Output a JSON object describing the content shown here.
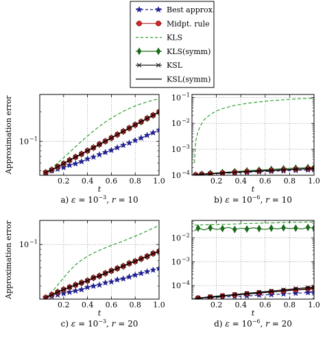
{
  "chart_data": {
    "type": "line",
    "ylabel": "Approximation error",
    "legend_position": "top-center",
    "legend": [
      "Best approx.",
      "Midpt. rule",
      "KLS",
      "KLS(symm)",
      "KSL",
      "KSL(symm)"
    ],
    "series_styles": {
      "Best approx.": {
        "color": "#1f1f8f",
        "line": "dashed",
        "marker": "star"
      },
      "Midpt. rule": {
        "color": "#b22222",
        "line": "solid",
        "marker": "circle"
      },
      "KLS": {
        "color": "#2ca02c",
        "line": "dashed",
        "marker": "none"
      },
      "KLS(symm)": {
        "color": "#1a6b1a",
        "line": "solid",
        "marker": "diamond"
      },
      "KSL": {
        "color": "#000000",
        "line": "solid",
        "marker": "x"
      },
      "KSL(symm)": {
        "color": "#000000",
        "line": "solid",
        "marker": "none"
      }
    },
    "panels": [
      {
        "id": "a",
        "caption": "a) ε = 10⁻³, r = 10",
        "caption_parts": [
          "a) ",
          "ε",
          " = 10",
          "−3",
          ", ",
          "r",
          " = 10"
        ],
        "xlabel": "t",
        "xlim": [
          0,
          1
        ],
        "ylim": [
          0.045,
          0.3
        ],
        "yscale": "log",
        "x_ticks": [
          "0.2",
          "0.4",
          "0.6",
          "0.8",
          "1.0"
        ],
        "y_ticks": [
          {
            "value": 0.1,
            "mantissa": "10",
            "exp": "−1"
          }
        ],
        "grid": true,
        "x": [
          0.05,
          0.1,
          0.15,
          0.2,
          0.25,
          0.3,
          0.35,
          0.4,
          0.45,
          0.5,
          0.55,
          0.6,
          0.65,
          0.7,
          0.75,
          0.8,
          0.85,
          0.9,
          0.95,
          1.0
        ],
        "series": [
          {
            "name": "Best approx.",
            "values": [
              0.048,
              0.05,
              0.052,
              0.054,
              0.057,
              0.059,
              0.062,
              0.066,
              0.069,
              0.073,
              0.077,
              0.081,
              0.086,
              0.091,
              0.096,
              0.102,
              0.108,
              0.115,
              0.122,
              0.13
            ]
          },
          {
            "name": "Midpt. rule",
            "values": [
              0.048,
              0.051,
              0.055,
              0.059,
              0.064,
              0.069,
              0.074,
              0.08,
              0.086,
              0.093,
              0.1,
              0.108,
              0.117,
              0.126,
              0.136,
              0.147,
              0.158,
              0.171,
              0.184,
              0.199
            ]
          },
          {
            "name": "KLS",
            "values": [
              0.048,
              0.053,
              0.06,
              0.068,
              0.077,
              0.088,
              0.1,
              0.113,
              0.127,
              0.142,
              0.157,
              0.172,
              0.187,
              0.202,
              0.216,
              0.229,
              0.241,
              0.252,
              0.262,
              0.272
            ]
          },
          {
            "name": "KLS(symm)",
            "values": [
              0.048,
              0.051,
              0.055,
              0.059,
              0.064,
              0.069,
              0.074,
              0.08,
              0.086,
              0.093,
              0.1,
              0.108,
              0.117,
              0.126,
              0.136,
              0.147,
              0.158,
              0.171,
              0.184,
              0.199
            ]
          },
          {
            "name": "KSL",
            "values": [
              0.048,
              0.051,
              0.055,
              0.059,
              0.064,
              0.069,
              0.074,
              0.08,
              0.086,
              0.093,
              0.1,
              0.108,
              0.117,
              0.126,
              0.136,
              0.147,
              0.158,
              0.171,
              0.184,
              0.199
            ]
          },
          {
            "name": "KSL(symm)",
            "values": [
              0.048,
              0.051,
              0.055,
              0.059,
              0.064,
              0.069,
              0.074,
              0.08,
              0.086,
              0.093,
              0.1,
              0.108,
              0.117,
              0.126,
              0.136,
              0.147,
              0.158,
              0.171,
              0.184,
              0.199
            ]
          }
        ]
      },
      {
        "id": "b",
        "caption": "b) ε = 10⁻⁶, r = 10",
        "caption_parts": [
          "b) ",
          "ε",
          " = 10",
          "−6",
          ", ",
          "r",
          " = 10"
        ],
        "xlabel": "t",
        "xlim": [
          0,
          1
        ],
        "ylim": [
          0.0001,
          0.13
        ],
        "yscale": "log",
        "x_ticks": [
          "0.2",
          "0.4",
          "0.6",
          "0.8",
          "1.0"
        ],
        "y_ticks": [
          {
            "value": 0.1,
            "mantissa": "10",
            "exp": "−1"
          },
          {
            "value": 0.01,
            "mantissa": "10",
            "exp": "−2"
          },
          {
            "value": 0.001,
            "mantissa": "10",
            "exp": "−3"
          },
          {
            "value": 0.0001,
            "mantissa": "10",
            "exp": "−4"
          }
        ],
        "grid": true,
        "x": [
          0.02,
          0.03,
          0.05,
          0.08,
          0.1,
          0.15,
          0.2,
          0.25,
          0.3,
          0.35,
          0.4,
          0.45,
          0.5,
          0.55,
          0.6,
          0.65,
          0.7,
          0.75,
          0.8,
          0.85,
          0.9,
          0.95,
          1.0
        ],
        "series": [
          {
            "name": "Best approx.",
            "values": [
              0.0001,
              0.000101,
              0.000103,
              0.000106,
              0.000108,
              0.000112,
              0.000115,
              0.000118,
              0.000121,
              0.000124,
              0.000127,
              0.00013,
              0.000133,
              0.000136,
              0.000139,
              0.000142,
              0.000145,
              0.000148,
              0.000151,
              0.000154,
              0.000157,
              0.00016,
              0.000163
            ]
          },
          {
            "name": "Midpt. rule",
            "values": [
              0.0001,
              0.000102,
              0.000105,
              0.000108,
              0.00011,
              0.000114,
              0.000118,
              0.000122,
              0.000126,
              0.00013,
              0.000134,
              0.000138,
              0.000142,
              0.000146,
              0.00015,
              0.000154,
              0.000158,
              0.000162,
              0.000166,
              0.00017,
              0.000174,
              0.000178,
              0.000182
            ]
          },
          {
            "name": "KLS",
            "values": [
              0.0003,
              0.002,
              0.005,
              0.01,
              0.014,
              0.022,
              0.03,
              0.037,
              0.043,
              0.049,
              0.054,
              0.059,
              0.063,
              0.067,
              0.071,
              0.075,
              0.078,
              0.081,
              0.084,
              0.087,
              0.089,
              0.091,
              0.093
            ]
          },
          {
            "name": "KLS(symm)",
            "values": [
              0.0001,
              0.000102,
              0.000106,
              0.00011,
              0.000113,
              0.000118,
              0.000123,
              0.000128,
              0.000133,
              0.000138,
              0.000143,
              0.000148,
              0.000153,
              0.000158,
              0.000163,
              0.000168,
              0.000173,
              0.000178,
              0.000183,
              0.000188,
              0.000193,
              0.000198,
              0.000203
            ]
          },
          {
            "name": "KSL",
            "values": [
              0.0001,
              0.000102,
              0.000105,
              0.000108,
              0.00011,
              0.000114,
              0.000118,
              0.000122,
              0.000126,
              0.00013,
              0.000134,
              0.000138,
              0.000142,
              0.000146,
              0.00015,
              0.000154,
              0.000158,
              0.000162,
              0.000166,
              0.00017,
              0.000174,
              0.000178,
              0.000182
            ]
          },
          {
            "name": "KSL(symm)",
            "values": [
              0.0001,
              0.000102,
              0.000105,
              0.000108,
              0.00011,
              0.000114,
              0.000118,
              0.000122,
              0.000126,
              0.00013,
              0.000134,
              0.000138,
              0.000142,
              0.000146,
              0.00015,
              0.000154,
              0.000158,
              0.000162,
              0.000166,
              0.00017,
              0.000174,
              0.000178,
              0.000182
            ]
          }
        ]
      },
      {
        "id": "c",
        "caption": "c) ε = 10⁻³, r = 20",
        "caption_parts": [
          "c) ",
          "ε",
          " = 10",
          "−3",
          ", ",
          "r",
          " = 20"
        ],
        "xlabel": "t",
        "xlim": [
          0,
          1
        ],
        "ylim": [
          0.03,
          0.17
        ],
        "yscale": "log",
        "x_ticks": [
          "0.2",
          "0.4",
          "0.6",
          "0.8",
          "1.0"
        ],
        "y_ticks": [
          {
            "value": 0.1,
            "mantissa": "10",
            "exp": "−1"
          }
        ],
        "grid": true,
        "x": [
          0.05,
          0.1,
          0.15,
          0.2,
          0.25,
          0.3,
          0.35,
          0.4,
          0.45,
          0.5,
          0.55,
          0.6,
          0.65,
          0.7,
          0.75,
          0.8,
          0.85,
          0.9,
          0.95,
          1.0
        ],
        "series": [
          {
            "name": "Best approx.",
            "values": [
              0.031,
              0.032,
              0.033,
              0.034,
              0.035,
              0.036,
              0.037,
              0.039,
              0.04,
              0.041,
              0.043,
              0.044,
              0.046,
              0.047,
              0.049,
              0.051,
              0.053,
              0.055,
              0.057,
              0.059
            ]
          },
          {
            "name": "Midpt. rule",
            "values": [
              0.031,
              0.033,
              0.035,
              0.037,
              0.039,
              0.041,
              0.043,
              0.045,
              0.048,
              0.05,
              0.053,
              0.056,
              0.059,
              0.062,
              0.066,
              0.069,
              0.073,
              0.077,
              0.082,
              0.086
            ]
          },
          {
            "name": "KLS",
            "values": [
              0.031,
              0.035,
              0.041,
              0.048,
              0.056,
              0.064,
              0.071,
              0.077,
              0.083,
              0.088,
              0.093,
              0.098,
              0.103,
              0.108,
              0.114,
              0.12,
              0.127,
              0.135,
              0.143,
              0.152
            ]
          },
          {
            "name": "KLS(symm)",
            "values": [
              0.031,
              0.033,
              0.035,
              0.037,
              0.039,
              0.041,
              0.043,
              0.045,
              0.048,
              0.05,
              0.053,
              0.056,
              0.059,
              0.062,
              0.066,
              0.069,
              0.073,
              0.077,
              0.082,
              0.086
            ]
          },
          {
            "name": "KSL",
            "values": [
              0.031,
              0.033,
              0.035,
              0.037,
              0.039,
              0.041,
              0.043,
              0.045,
              0.048,
              0.05,
              0.053,
              0.056,
              0.059,
              0.062,
              0.066,
              0.069,
              0.073,
              0.077,
              0.082,
              0.086
            ]
          },
          {
            "name": "KSL(symm)",
            "values": [
              0.031,
              0.033,
              0.035,
              0.037,
              0.039,
              0.041,
              0.043,
              0.045,
              0.048,
              0.05,
              0.053,
              0.056,
              0.059,
              0.062,
              0.066,
              0.069,
              0.073,
              0.077,
              0.082,
              0.086
            ]
          }
        ]
      },
      {
        "id": "d",
        "caption": "d) ε = 10⁻⁶, r = 20",
        "caption_parts": [
          "d) ",
          "ε",
          " = 10",
          "−6",
          ", ",
          "r",
          " = 20"
        ],
        "xlabel": "t",
        "xlim": [
          0,
          1
        ],
        "ylim": [
          2.7e-05,
          0.055
        ],
        "yscale": "log",
        "x_ticks": [
          "0.2",
          "0.4",
          "0.6",
          "0.8",
          "1.0"
        ],
        "y_ticks": [
          {
            "value": 0.01,
            "mantissa": "10",
            "exp": "−2"
          },
          {
            "value": 0.001,
            "mantissa": "10",
            "exp": "−3"
          },
          {
            "value": 0.0001,
            "mantissa": "10",
            "exp": "−4"
          }
        ],
        "grid": true,
        "x": [
          0.02,
          0.05,
          0.1,
          0.15,
          0.2,
          0.25,
          0.3,
          0.35,
          0.4,
          0.45,
          0.5,
          0.55,
          0.6,
          0.65,
          0.7,
          0.75,
          0.8,
          0.85,
          0.9,
          0.95,
          1.0
        ],
        "series": [
          {
            "name": "Best approx.",
            "values": [
              2.8e-05,
              2.9e-05,
              3e-05,
              3.1e-05,
              3.2e-05,
              3.3e-05,
              3.4e-05,
              3.5e-05,
              3.6e-05,
              3.7e-05,
              3.8e-05,
              4e-05,
              4.1e-05,
              4.2e-05,
              4.3e-05,
              4.5e-05,
              4.6e-05,
              4.8e-05,
              4.9e-05,
              5.1e-05,
              5.2e-05
            ]
          },
          {
            "name": "Midpt. rule",
            "values": [
              2.8e-05,
              3e-05,
              3.1e-05,
              3.3e-05,
              3.5e-05,
              3.7e-05,
              3.9e-05,
              4.1e-05,
              4.3e-05,
              4.5e-05,
              4.7e-05,
              5e-05,
              5.2e-05,
              5.5e-05,
              5.8e-05,
              6.1e-05,
              6.4e-05,
              6.7e-05,
              7e-05,
              7.4e-05,
              7.8e-05
            ]
          },
          {
            "name": "KLS",
            "values": [
              0.035,
              0.035,
              0.036,
              0.036,
              0.037,
              0.038,
              0.038,
              0.039,
              0.04,
              0.041,
              0.041,
              0.042,
              0.043,
              0.043,
              0.044,
              0.045,
              0.045,
              0.046,
              0.046,
              0.047,
              0.047
            ]
          },
          {
            "name": "KLS(symm)",
            "values": [
              0.02,
              0.026,
              0.022,
              0.027,
              0.023,
              0.025,
              0.028,
              0.023,
              0.026,
              0.024,
              0.027,
              0.025,
              0.023,
              0.026,
              0.024,
              0.027,
              0.025,
              0.026,
              0.024,
              0.028,
              0.026
            ]
          },
          {
            "name": "KSL",
            "values": [
              2.8e-05,
              3e-05,
              3.2e-05,
              3.4e-05,
              3.6e-05,
              3.8e-05,
              4e-05,
              4.2e-05,
              4.5e-05,
              4.7e-05,
              5e-05,
              5.3e-05,
              5.6e-05,
              5.9e-05,
              6.2e-05,
              6.6e-05,
              7e-05,
              7.4e-05,
              7.8e-05,
              8.2e-05,
              8.7e-05
            ]
          },
          {
            "name": "KSL(symm)",
            "values": [
              2.8e-05,
              2.9e-05,
              3.1e-05,
              3.2e-05,
              3.4e-05,
              3.6e-05,
              3.8e-05,
              4e-05,
              4.2e-05,
              4.4e-05,
              4.6e-05,
              4.8e-05,
              5.1e-05,
              5.3e-05,
              5.6e-05,
              5.9e-05,
              6.2e-05,
              6.5e-05,
              6.8e-05,
              7.1e-05,
              7.5e-05
            ]
          }
        ]
      }
    ]
  }
}
